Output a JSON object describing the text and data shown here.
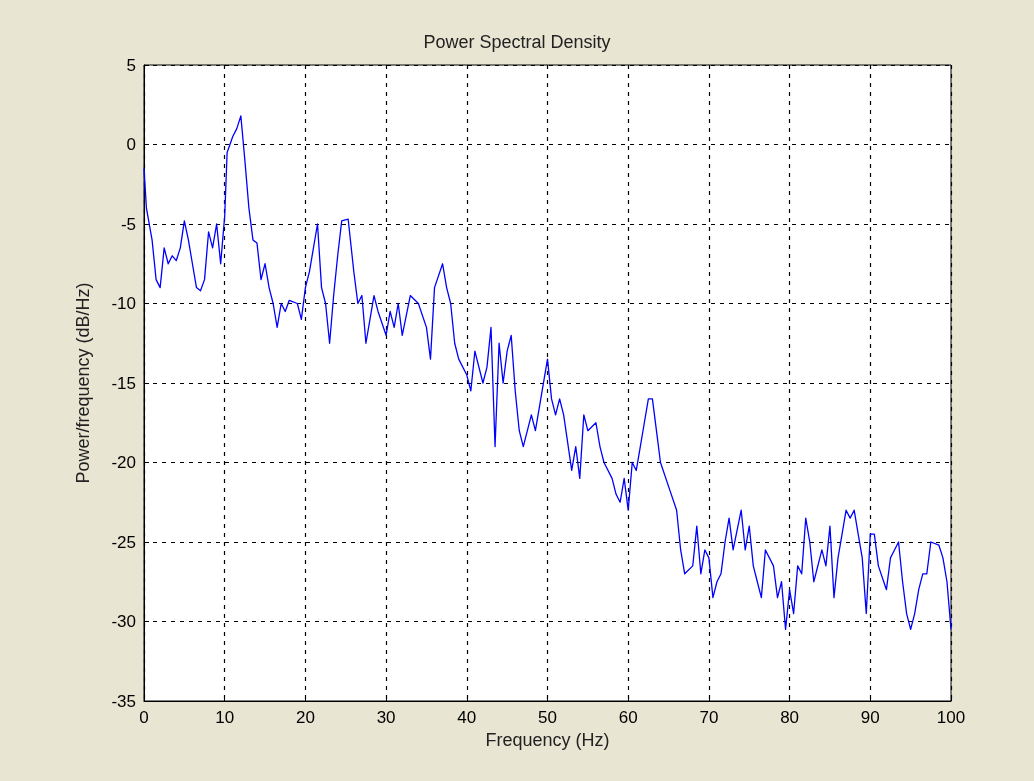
{
  "chart_data": {
    "type": "line",
    "title": "Power Spectral Density",
    "xlabel": "Frequency (Hz)",
    "ylabel": "Power/frequency (dB/Hz)",
    "xlim": [
      0,
      100
    ],
    "xticks": [
      0,
      10,
      20,
      30,
      40,
      50,
      60,
      70,
      80,
      90,
      100
    ],
    "ylim": [
      -35,
      5
    ],
    "yticks": [
      -35,
      -30,
      -25,
      -20,
      -15,
      -10,
      -5,
      0,
      5
    ],
    "grid": true,
    "marker": "none",
    "line_style": "solid",
    "series": [
      {
        "color": "#0000ff",
        "x": [
          0,
          0.3,
          1,
          1.5,
          2,
          2.5,
          3,
          3.5,
          4,
          4.5,
          5,
          5.5,
          6,
          6.5,
          7,
          7.5,
          8,
          8.5,
          9,
          9.5,
          10,
          10.3,
          11,
          11.5,
          12,
          12.5,
          13,
          13.5,
          14,
          14.5,
          15,
          15.5,
          16,
          16.5,
          17,
          17.5,
          18,
          19,
          19.5,
          20,
          20.5,
          21,
          21.5,
          22,
          22.5,
          23,
          23.5,
          24,
          24.5,
          25.3,
          26,
          26.5,
          27,
          27.5,
          28,
          28.5,
          29,
          30,
          30.5,
          31,
          31.5,
          32,
          33,
          34,
          35,
          35.5,
          36,
          37,
          37.5,
          38,
          38.5,
          39,
          40,
          40.5,
          41,
          42,
          42.5,
          43,
          43.5,
          44,
          44.5,
          45,
          45.5,
          46,
          46.5,
          47,
          48,
          48.5,
          49,
          50,
          50.5,
          51,
          51.5,
          52,
          53,
          53.5,
          54,
          54.5,
          55,
          56,
          56.5,
          57,
          58,
          58.5,
          59,
          59.5,
          60,
          60.5,
          61,
          61.5,
          62,
          62.5,
          63,
          63.5,
          64,
          65,
          66,
          66.5,
          67,
          68,
          68.5,
          69,
          69.5,
          70,
          70.5,
          71,
          71.5,
          72,
          72.5,
          73,
          74,
          74.5,
          75,
          75.5,
          76,
          76.5,
          77,
          78,
          78.5,
          79,
          79.5,
          80,
          80.5,
          81,
          81.5,
          82,
          82.5,
          83,
          84,
          84.5,
          85,
          85.5,
          86,
          86.5,
          87,
          87.5,
          88,
          88.5,
          89,
          89.5,
          90,
          90.5,
          91,
          92,
          92.5,
          93,
          93.5,
          94,
          94.5,
          95,
          95.5,
          96,
          96.5,
          97,
          97.5,
          98.5,
          99,
          99.5,
          100
        ],
        "values": [
          -1.5,
          -4,
          -6,
          -8.5,
          -9,
          -6.5,
          -7.5,
          -7,
          -7.3,
          -6.5,
          -4.8,
          -6,
          -7.5,
          -9,
          -9.2,
          -8.5,
          -5.5,
          -6.5,
          -5,
          -7.5,
          -4.5,
          -0.5,
          0.5,
          1,
          1.8,
          -1,
          -4,
          -6,
          -6.2,
          -8.5,
          -7.5,
          -9,
          -10,
          -11.5,
          -10,
          -10.5,
          -9.8,
          -10,
          -11,
          -9,
          -8,
          -6.5,
          -5,
          -9,
          -10,
          -12.5,
          -9.5,
          -7,
          -4.8,
          -4.7,
          -8,
          -10,
          -9.5,
          -12.5,
          -11,
          -9.5,
          -10.5,
          -12,
          -10.5,
          -11.5,
          -10,
          -12,
          -9.5,
          -10,
          -11.5,
          -13.5,
          -9,
          -7.5,
          -9,
          -10,
          -12.5,
          -13.5,
          -14.5,
          -15.5,
          -13,
          -15,
          -14,
          -11.5,
          -19,
          -12.5,
          -15,
          -13,
          -12,
          -15.5,
          -18,
          -19,
          -17,
          -18,
          -16.5,
          -13.5,
          -16,
          -17,
          -16,
          -17,
          -20.5,
          -19,
          -21,
          -17,
          -18,
          -17.5,
          -19,
          -20,
          -21,
          -22,
          -22.5,
          -21,
          -23,
          -20,
          -20.5,
          -19,
          -17.5,
          -16,
          -16,
          -18,
          -20,
          -21.5,
          -23,
          -25.5,
          -27,
          -26.5,
          -24,
          -27,
          -25.5,
          -26,
          -28.5,
          -27.5,
          -27,
          -25,
          -23.5,
          -25.5,
          -23,
          -25.5,
          -24,
          -26.5,
          -27.5,
          -28.5,
          -25.5,
          -26.5,
          -28.5,
          -27.5,
          -30.5,
          -28,
          -29.5,
          -26.5,
          -27,
          -23.5,
          -25,
          -27.5,
          -25.5,
          -26.5,
          -24,
          -28.5,
          -26,
          -24.5,
          -23,
          -23.5,
          -23,
          -24.5,
          -26,
          -29.5,
          -24.5,
          -24.5,
          -26.5,
          -28,
          -26,
          -25.5,
          -25,
          -27.5,
          -29.5,
          -30.5,
          -29.5,
          -28,
          -27,
          -27,
          -25,
          -25.2,
          -26,
          -27.5,
          -30.5
        ]
      }
    ]
  }
}
